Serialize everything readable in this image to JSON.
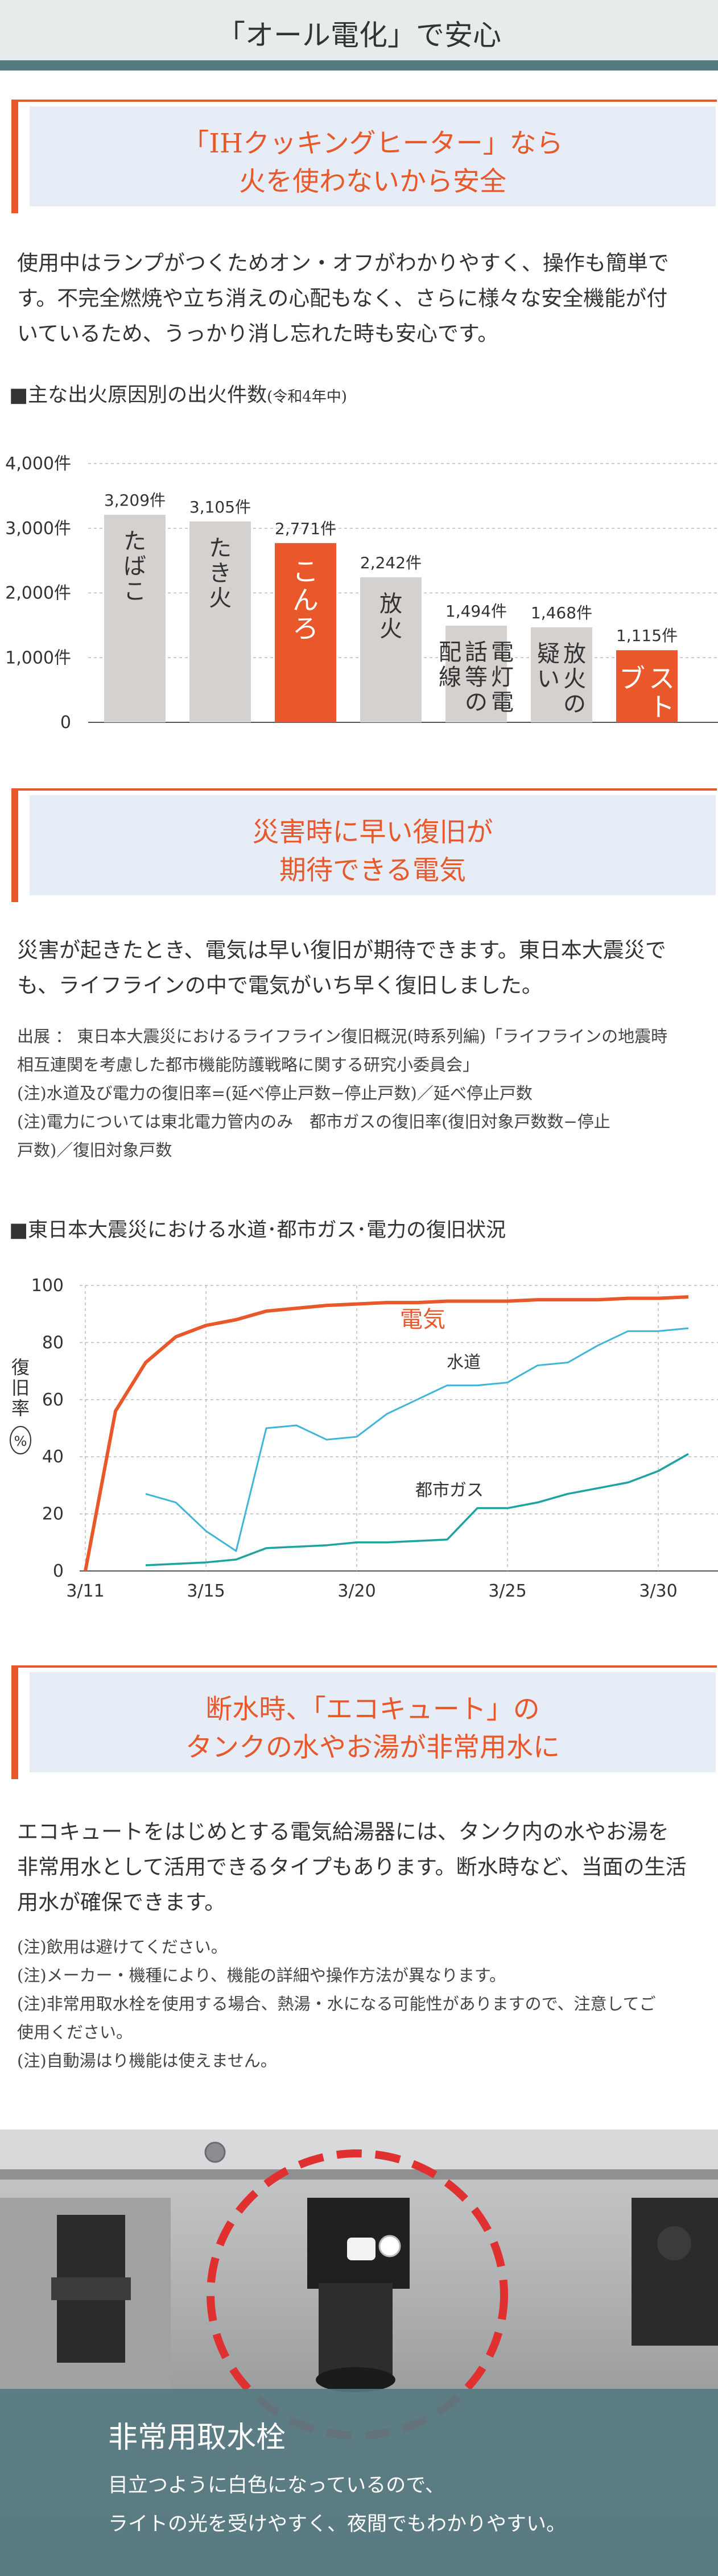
{
  "page": {
    "title": "「オール電化」で安心"
  },
  "sections": [
    {
      "heading": [
        "「IHクッキングヒーター」なら",
        "火を使わないから安全"
      ],
      "body": [
        "使用中はランプがつくためオン・オフがわかりやすく、操作も簡単で",
        "す。不完全燃焼や立ち消えの心配もなく、さらに様々な安全機能が付",
        "いているため、うっかり消し忘れた時も安心です。"
      ]
    },
    {
      "heading": [
        "災害時に早い復旧が",
        "期待できる電気"
      ],
      "body": [
        "災害が起きたとき、電気は早い復旧が期待できます。東日本大震災で",
        "も、ライフラインの中で電気がいち早く復旧しました。"
      ],
      "notes": [
        "出展 ： 東日本大震災におけるライフライン復旧概況(時系列編)「ライフラインの地震時",
        "相互連関を考慮した都市機能防護戦略に関する研究小委員会」",
        "(注)水道及び電力の復旧率=(延べ停止戸数−停止戸数)／延べ停止戸数",
        "(注)電力については東北電力管内のみ　都市ガスの復旧率(復旧対象戸数数−停止",
        "戸数)／復旧対象戸数"
      ]
    },
    {
      "heading": [
        "断水時、「エコキュート」の",
        "タンクの水やお湯が非常用水に"
      ],
      "body": [
        "エコキュートをはじめとする電気給湯器には、タンク内の水やお湯を",
        "非常用水として活用できるタイプもあります。断水時など、当面の生活",
        "用水が確保できます。"
      ],
      "notes": [
        "(注)飲用は避けてください。",
        "(注)メーカー・機種により、機能の詳細や操作方法が異なります。",
        "(注)非常用取水栓を使用する場合、熱湯・水になる可能性がありますので、注意してご",
        "使用ください。",
        "(注)自動湯はり機能は使えません。"
      ]
    }
  ],
  "photo_caption": {
    "title": "非常用取水栓",
    "lines": [
      "目立つように白色になっているので、",
      "ライトの光を受けやすく、夜間でもわかりやすい。"
    ]
  },
  "colors": {
    "accent": "#e8582a",
    "gray_bar": "#d4d1cf",
    "teal": "#567a82",
    "water": "#3fb5d8",
    "gas": "#1fa2a2"
  },
  "chart_data": [
    {
      "type": "bar",
      "title": "■主な出火原因別の出火件数",
      "subtitle": "(令和4年中)",
      "ylim": [
        0,
        4000
      ],
      "yticks": [
        "0",
        "1,000件",
        "2,000件",
        "3,000件",
        "4,000件"
      ],
      "grid": true,
      "categories": [
        "たばこ",
        "たき火",
        "こんろ",
        "放火",
        "電灯電話等の配線",
        "放火の疑い",
        "ストーブ"
      ],
      "values": [
        3209,
        3105,
        2771,
        2242,
        1494,
        1468,
        1115
      ],
      "value_labels": [
        "3,209件",
        "3,105件",
        "2,771件",
        "2,242件",
        "1,494件",
        "1,468件",
        "1,115件"
      ],
      "highlighted": [
        "こんろ",
        "ストーブ"
      ]
    },
    {
      "type": "line",
      "title": "■東日本大震災における水道･都市ガス･電力の復旧状況",
      "ylabel": "復旧率(%)",
      "ylim": [
        0,
        100
      ],
      "yticks": [
        "0",
        "20",
        "40",
        "60",
        "80",
        "100"
      ],
      "xticks": [
        "3/11",
        "3/15",
        "3/20",
        "3/25",
        "3/30"
      ],
      "xlim": [
        11,
        31
      ],
      "grid": true,
      "series": [
        {
          "name": "電気",
          "x": [
            11,
            12,
            13,
            14,
            15,
            16,
            17,
            18,
            19,
            20,
            21,
            22,
            23,
            24,
            25,
            26,
            27,
            28,
            29,
            30,
            31
          ],
          "values": [
            0,
            56,
            73,
            82,
            86,
            88,
            91,
            92,
            93,
            93.5,
            94,
            94,
            94.5,
            94.5,
            94.5,
            95,
            95,
            95,
            95.5,
            95.5,
            96
          ]
        },
        {
          "name": "水道",
          "x": [
            13,
            14,
            15,
            16,
            17,
            18,
            19,
            20,
            21,
            22,
            23,
            24,
            25,
            26,
            27,
            28,
            29,
            30,
            31
          ],
          "values": [
            27,
            24,
            14,
            7,
            50,
            51,
            46,
            47,
            55,
            60,
            65,
            65,
            66,
            72,
            73,
            79,
            84,
            84,
            85
          ]
        },
        {
          "name": "都市ガス",
          "x": [
            13,
            14,
            15,
            16,
            17,
            18,
            19,
            20,
            21,
            22,
            23,
            24,
            25,
            26,
            27,
            28,
            29,
            30,
            31
          ],
          "values": [
            2,
            2.5,
            3,
            4,
            8,
            8.5,
            9,
            10,
            10,
            10.5,
            11,
            22,
            22,
            24,
            27,
            29,
            31,
            35,
            41
          ]
        }
      ]
    }
  ]
}
